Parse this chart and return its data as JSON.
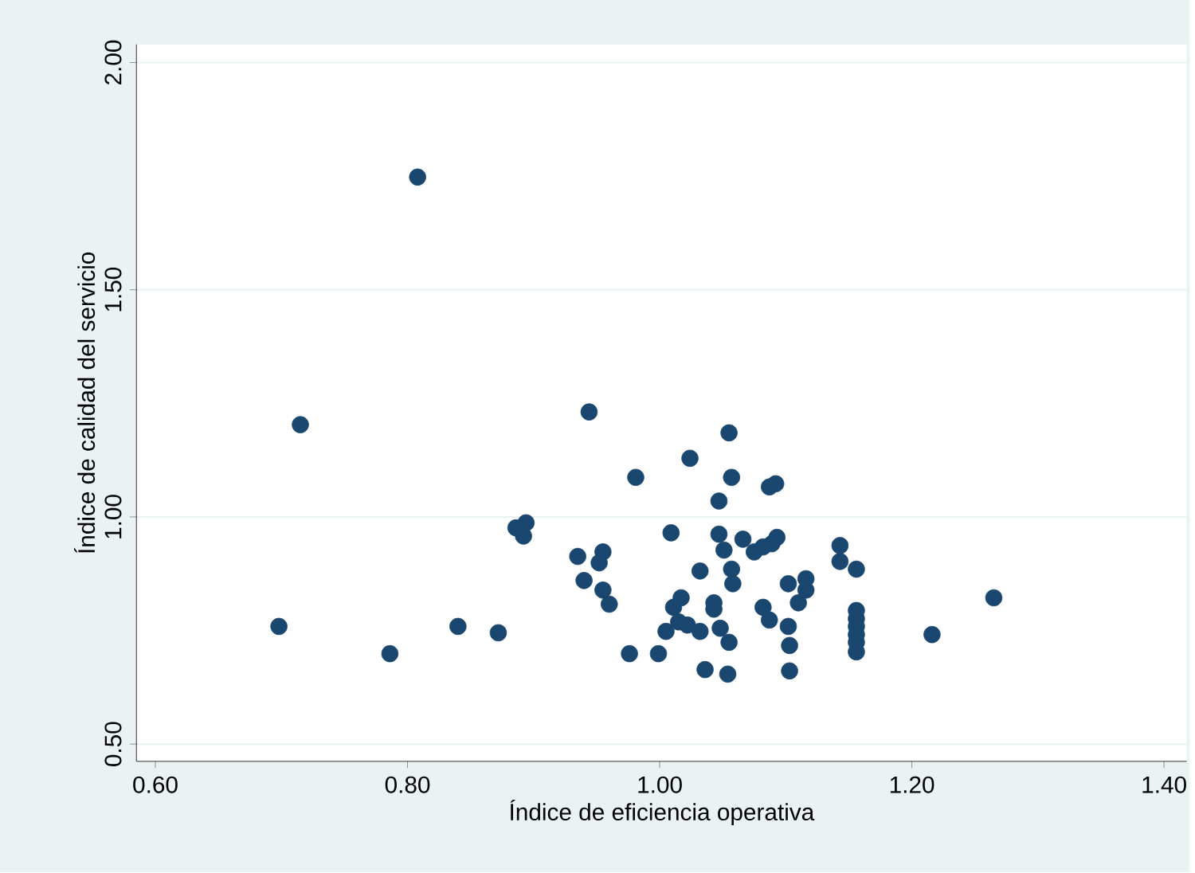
{
  "chart_data": {
    "type": "scatter",
    "xlabel": "Índice de eficiencia operativa",
    "ylabel": "Índice de calidad del servicio",
    "x": [
      0.808,
      0.715,
      0.698,
      0.786,
      0.84,
      0.872,
      0.886,
      0.894,
      0.892,
      0.944,
      0.935,
      0.94,
      0.955,
      0.952,
      0.955,
      0.96,
      0.981,
      0.976,
      0.999,
      1.009,
      1.005,
      1.011,
      1.017,
      1.015,
      1.022,
      1.024,
      1.032,
      1.032,
      1.036,
      1.043,
      1.043,
      1.047,
      1.047,
      1.051,
      1.048,
      1.055,
      1.057,
      1.055,
      1.054,
      1.057,
      1.058,
      1.066,
      1.075,
      1.082,
      1.089,
      1.093,
      1.087,
      1.087,
      1.092,
      1.082,
      1.102,
      1.102,
      1.103,
      1.103,
      1.11,
      1.116,
      1.116,
      1.143,
      1.143,
      1.156,
      1.156,
      1.156,
      1.156,
      1.156,
      1.156,
      1.156,
      1.216,
      1.265
    ],
    "values": [
      1.748,
      1.203,
      0.759,
      0.699,
      0.759,
      0.745,
      0.976,
      0.987,
      0.958,
      1.231,
      0.913,
      0.86,
      0.923,
      0.899,
      0.839,
      0.808,
      1.087,
      0.699,
      0.699,
      0.965,
      0.748,
      0.801,
      0.822,
      0.769,
      0.762,
      1.129,
      0.881,
      0.748,
      0.664,
      0.797,
      0.811,
      1.035,
      0.962,
      0.927,
      0.755,
      1.185,
      1.087,
      0.724,
      0.654,
      0.885,
      0.853,
      0.951,
      0.923,
      0.934,
      0.941,
      0.955,
      0.773,
      1.066,
      1.073,
      0.801,
      0.853,
      0.759,
      0.717,
      0.661,
      0.811,
      0.864,
      0.839,
      0.937,
      0.902,
      0.885,
      0.794,
      0.776,
      0.759,
      0.741,
      0.724,
      0.703,
      0.741,
      0.822
    ],
    "color": "#1a476f",
    "marker": "circle",
    "xlim": [
      0.585,
      1.418
    ],
    "ylim": [
      0.462,
      2.04
    ],
    "xticks": [
      {
        "value": 0.6,
        "label": "0.60"
      },
      {
        "value": 0.8,
        "label": "0.80"
      },
      {
        "value": 1.0,
        "label": "1.00"
      },
      {
        "value": 1.2,
        "label": "1.20"
      },
      {
        "value": 1.4,
        "label": "1.40"
      }
    ],
    "yticks": [
      {
        "value": 0.5,
        "label": "0.50"
      },
      {
        "value": 1.0,
        "label": "1.00"
      },
      {
        "value": 1.5,
        "label": "1.50"
      },
      {
        "value": 2.0,
        "label": "2.00"
      }
    ],
    "grid": "y"
  }
}
